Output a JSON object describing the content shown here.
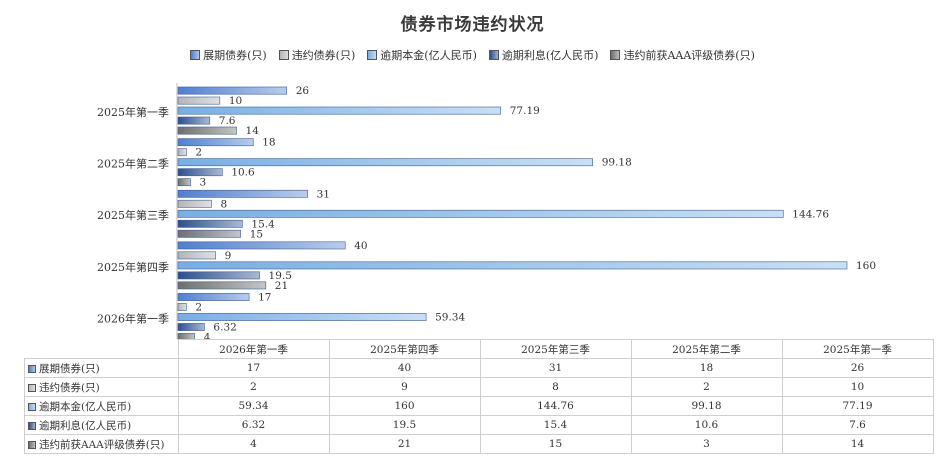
{
  "chart_data": {
    "type": "bar",
    "orientation": "horizontal",
    "title": "债券市场违约状况",
    "categories": [
      "2025年第一季",
      "2025年第二季",
      "2025年第三季",
      "2025年第四季",
      "2026年第一季"
    ],
    "table_columns": [
      "2026年第一季",
      "2025年第四季",
      "2025年第三季",
      "2025年第二季",
      "2025年第一季"
    ],
    "xlim": [
      0,
      160
    ],
    "grid": false,
    "legend_position": "top",
    "data_table": true,
    "series": [
      {
        "name": "展期债券(只)",
        "color": "#4f7fcf",
        "values": [
          26,
          18,
          31,
          40,
          17
        ]
      },
      {
        "name": "违约债券(只)",
        "color": "#b5b5b5",
        "values": [
          10,
          2,
          8,
          9,
          2
        ]
      },
      {
        "name": "逾期本金(亿人民币)",
        "color": "#78aee3",
        "values": [
          77.19,
          99.18,
          144.76,
          160,
          59.34
        ]
      },
      {
        "name": "逾期利息(亿人民币)",
        "color": "#2c4f8c",
        "values": [
          7.6,
          10.6,
          15.4,
          19.5,
          6.32
        ]
      },
      {
        "name": "违约前获AAA评级债券(只)",
        "color": "#6e6e6e",
        "values": [
          14,
          3,
          15,
          21,
          4
        ]
      }
    ]
  }
}
